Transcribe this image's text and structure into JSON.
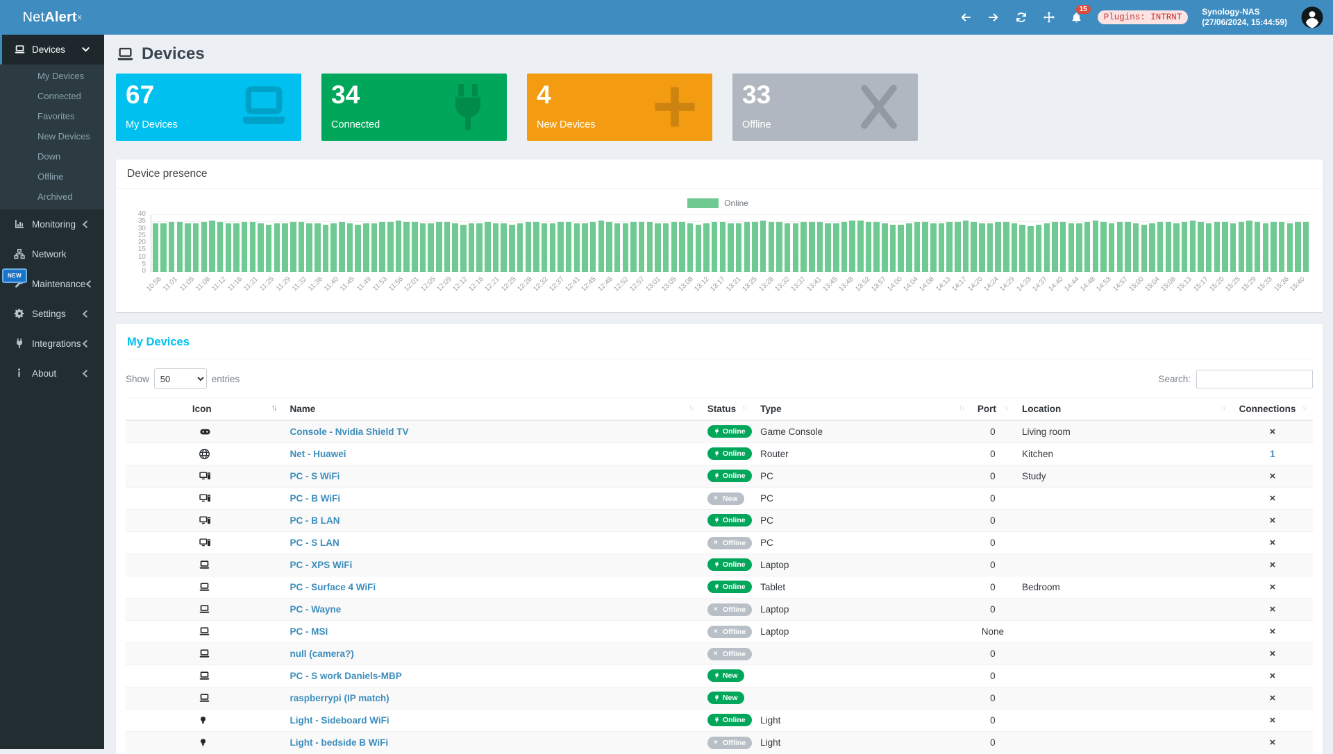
{
  "app": {
    "logo_net": "Net",
    "logo_alert": "Alert",
    "logo_sup": "x"
  },
  "header": {
    "notification_count": "15",
    "plugins_badge": "Plugins: INTRNT",
    "nas_name": "Synology-NAS",
    "nas_time": "(27/06/2024, 15:44:59)"
  },
  "sidebar": {
    "new_badge": "NEW",
    "items": [
      {
        "id": "devices",
        "label": "Devices",
        "icon": "laptop",
        "chevron": "down",
        "active": true,
        "children": [
          "My Devices",
          "Connected",
          "Favorites",
          "New Devices",
          "Down",
          "Offline",
          "Archived"
        ]
      },
      {
        "id": "monitoring",
        "label": "Monitoring",
        "icon": "chart",
        "chevron": "left"
      },
      {
        "id": "network",
        "label": "Network",
        "icon": "sitemap"
      },
      {
        "id": "maintenance",
        "label": "Maintenance",
        "icon": "wrench",
        "chevron": "left"
      },
      {
        "id": "settings",
        "label": "Settings",
        "icon": "gear",
        "chevron": "left"
      },
      {
        "id": "integrations",
        "label": "Integrations",
        "icon": "plug",
        "chevron": "left"
      },
      {
        "id": "about",
        "label": "About",
        "icon": "info",
        "chevron": "left"
      }
    ]
  },
  "page": {
    "title": "Devices"
  },
  "cards": [
    {
      "value": "67",
      "label": "My Devices",
      "color": "#00c0ef",
      "icon": "laptop-big"
    },
    {
      "value": "34",
      "label": "Connected",
      "color": "#00a65a",
      "icon": "plug-big"
    },
    {
      "value": "4",
      "label": "New Devices",
      "color": "#f39c12",
      "icon": "plus-big"
    },
    {
      "value": "33",
      "label": "Offline",
      "color": "#b0b7c0",
      "icon": "x-big"
    }
  ],
  "chart_data": {
    "type": "bar",
    "title": "Device presence",
    "legend": [
      {
        "label": "Online",
        "color": "#6eca91",
        "position": "top-center"
      }
    ],
    "ylim": [
      0,
      40
    ],
    "y_ticks": [
      40,
      35,
      30,
      25,
      20,
      15,
      10,
      5,
      0
    ],
    "grid": true,
    "label_every": 2,
    "x_labels": [
      "10:56",
      "11:01",
      "11:05",
      "11:08",
      "11:12",
      "11:16",
      "11:21",
      "11:25",
      "11:29",
      "11:32",
      "11:36",
      "11:40",
      "11:45",
      "11:49",
      "11:53",
      "11:56",
      "12:01",
      "12:05",
      "12:09",
      "12:12",
      "12:16",
      "12:21",
      "12:25",
      "12:28",
      "12:32",
      "12:37",
      "12:41",
      "12:45",
      "12:48",
      "12:52",
      "12:57",
      "13:01",
      "13:05",
      "13:08",
      "13:12",
      "13:17",
      "13:21",
      "13:25",
      "13:28",
      "13:32",
      "13:37",
      "13:41",
      "13:45",
      "13:48",
      "13:52",
      "13:57",
      "14:00",
      "14:04",
      "14:08",
      "14:13",
      "14:17",
      "14:20",
      "14:24",
      "14:29",
      "14:33",
      "14:37",
      "14:40",
      "14:44",
      "14:48",
      "14:53",
      "14:57",
      "15:00",
      "15:04",
      "15:08",
      "15:13",
      "15:17",
      "15:20",
      "15:25",
      "15:29",
      "15:33",
      "15:36",
      "15:40"
    ],
    "values": [
      34,
      34,
      35,
      35,
      34,
      34,
      35,
      36,
      35,
      34,
      34,
      35,
      35,
      34,
      33,
      34,
      34,
      35,
      35,
      34,
      34,
      33,
      34,
      35,
      34,
      33,
      34,
      34,
      35,
      35,
      36,
      35,
      35,
      34,
      34,
      35,
      35,
      34,
      33,
      34,
      34,
      35,
      34,
      34,
      33,
      34,
      35,
      35,
      34,
      34,
      35,
      35,
      34,
      34,
      35,
      36,
      35,
      34,
      34,
      35,
      35,
      35,
      34,
      34,
      35,
      35,
      34,
      33,
      34,
      35,
      35,
      34,
      34,
      35,
      35,
      36,
      35,
      35,
      34,
      34,
      35,
      35,
      35,
      34,
      34,
      35,
      36,
      36,
      35,
      35,
      34,
      33,
      33,
      34,
      35,
      35,
      34,
      34,
      35,
      35,
      36,
      35,
      34,
      34,
      35,
      35,
      34,
      33,
      32,
      33,
      34,
      35,
      35,
      34,
      34,
      35,
      36,
      35,
      34,
      35,
      35,
      34,
      33,
      34,
      35,
      35,
      34,
      35,
      36,
      35,
      34,
      35,
      35,
      34,
      35,
      36,
      35,
      34,
      35,
      35,
      34,
      35,
      35
    ]
  },
  "devices_table": {
    "title": "My Devices",
    "show_label": "Show",
    "page_length": "50",
    "entries_label": "entries",
    "search_label": "Search:",
    "search_value": "",
    "columns": [
      {
        "label": "Icon",
        "sort": "active"
      },
      {
        "label": "Name",
        "sort": "inactive"
      },
      {
        "label": "Status",
        "sort": "inactive"
      },
      {
        "label": "Type",
        "sort": "inactive"
      },
      {
        "label": "Port",
        "sort": "inactive"
      },
      {
        "label": "Location",
        "sort": "inactive"
      },
      {
        "label": "Connections",
        "sort": "inactive"
      }
    ],
    "rows": [
      {
        "icon": "gamepad",
        "name": "Console - Nvidia Shield TV",
        "status": "Online",
        "status_variant": "online",
        "type": "Game Console",
        "port": "0",
        "location": "Living room",
        "connections": "×"
      },
      {
        "icon": "globe",
        "name": "Net - Huawei",
        "status": "Online",
        "status_variant": "online",
        "type": "Router",
        "port": "0",
        "location": "Kitchen",
        "connections": "1"
      },
      {
        "icon": "desktop",
        "name": "PC - S WiFi",
        "status": "Online",
        "status_variant": "online",
        "type": "PC",
        "port": "0",
        "location": "Study",
        "connections": "×"
      },
      {
        "icon": "desktop",
        "name": "PC - B WiFi",
        "status": "New",
        "status_variant": "offline",
        "type": "PC",
        "port": "0",
        "location": "",
        "connections": "×"
      },
      {
        "icon": "desktop",
        "name": "PC - B LAN",
        "status": "Online",
        "status_variant": "online",
        "type": "PC",
        "port": "0",
        "location": "",
        "connections": "×"
      },
      {
        "icon": "desktop",
        "name": "PC - S LAN",
        "status": "Offline",
        "status_variant": "offline",
        "type": "PC",
        "port": "0",
        "location": "",
        "connections": "×"
      },
      {
        "icon": "laptop",
        "name": "PC - XPS WiFi",
        "status": "Online",
        "status_variant": "online",
        "type": "Laptop",
        "port": "0",
        "location": "",
        "connections": "×"
      },
      {
        "icon": "laptop",
        "name": "PC - Surface 4 WiFi",
        "status": "Online",
        "status_variant": "online",
        "type": "Tablet",
        "port": "0",
        "location": "Bedroom",
        "connections": "×"
      },
      {
        "icon": "laptop",
        "name": "PC - Wayne",
        "status": "Offline",
        "status_variant": "offline",
        "type": "Laptop",
        "port": "0",
        "location": "",
        "connections": "×"
      },
      {
        "icon": "laptop",
        "name": "PC - MSI",
        "status": "Offline",
        "status_variant": "offline",
        "type": "Laptop",
        "port": "None",
        "location": "",
        "connections": "×"
      },
      {
        "icon": "laptop",
        "name": "null (camera?)",
        "status": "Offline",
        "status_variant": "offline",
        "type": "",
        "port": "0",
        "location": "",
        "connections": "×"
      },
      {
        "icon": "laptop",
        "name": "PC - S work Daniels-MBP",
        "status": "New",
        "status_variant": "online",
        "type": "",
        "port": "0",
        "location": "",
        "connections": "×"
      },
      {
        "icon": "laptop",
        "name": "raspberrypi (IP match)",
        "status": "New",
        "status_variant": "online",
        "type": "",
        "port": "0",
        "location": "",
        "connections": "×"
      },
      {
        "icon": "bulb",
        "name": "Light - Sideboard WiFi",
        "status": "Online",
        "status_variant": "online",
        "type": "Light",
        "port": "0",
        "location": "",
        "connections": "×"
      },
      {
        "icon": "bulb",
        "name": "Light - bedside B WiFi",
        "status": "Offline",
        "status_variant": "offline",
        "type": "Light",
        "port": "0",
        "location": "",
        "connections": "×"
      }
    ]
  },
  "colors": {
    "header_blue": "#3f8cc1",
    "sidebar_dark": "#222d32",
    "accent": "#3c8dbc",
    "card_cyan": "#00c0ef",
    "card_green": "#00a65a",
    "card_orange": "#f39c12",
    "card_grey": "#b0b7c0",
    "bar_green": "#6eca91",
    "badge_online": "#00a65a",
    "badge_offline": "#b8bfc6",
    "heading_cyan": "#00c0ef",
    "alert_red": "#dd4b39"
  }
}
